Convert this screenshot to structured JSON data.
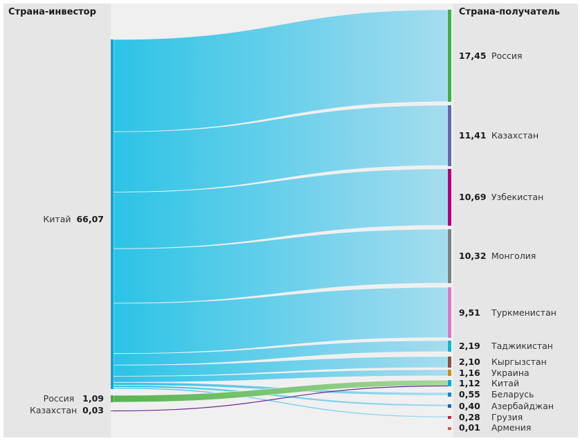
{
  "headers": {
    "left": "Страна-инвестор",
    "right": "Страна-получатель"
  },
  "sources": [
    {
      "name": "Китай",
      "value": "66,07",
      "v": 66.07,
      "color": "#00a6dc"
    },
    {
      "name": "Россия",
      "value": "1,09",
      "v": 1.09,
      "color": "#4aa84a"
    },
    {
      "name": "Казахстан",
      "value": "0,03",
      "v": 0.03,
      "color": "#6a2a9a"
    }
  ],
  "targets": [
    {
      "name": "Россия",
      "value": "17,45",
      "v": 17.45,
      "color": "#4aa84a"
    },
    {
      "name": "Казахстан",
      "value": "11,41",
      "v": 11.41,
      "color": "#6868a8"
    },
    {
      "name": "Узбекистан",
      "value": "10,69",
      "v": 10.69,
      "color": "#b0007a"
    },
    {
      "name": "Монголия",
      "value": "10,32",
      "v": 10.32,
      "color": "#808080"
    },
    {
      "name": "Туркменистан",
      "value": "9,51",
      "v": 9.51,
      "color": "#d47fbf"
    },
    {
      "name": "Таджикистан",
      "value": "2,19",
      "v": 2.19,
      "color": "#1fb3c8"
    },
    {
      "name": "Кыргызстан",
      "value": "2,10",
      "v": 2.1,
      "color": "#8a5444"
    },
    {
      "name": "Украина",
      "value": "1,16",
      "v": 1.16,
      "color": "#d08a20"
    },
    {
      "name": "Китай",
      "value": "1,12",
      "v": 1.12,
      "color": "#00a8e0"
    },
    {
      "name": "Беларусь",
      "value": "0,55",
      "v": 0.55,
      "color": "#2282c4"
    },
    {
      "name": "Азербайджан",
      "value": "0,40",
      "v": 0.4,
      "color": "#1f64a4"
    },
    {
      "name": "Грузия",
      "value": "0,28",
      "v": 0.28,
      "color": "#c02040"
    },
    {
      "name": "Армения",
      "value": "0,01",
      "v": 0.01,
      "color": "#c06040"
    }
  ]
}
